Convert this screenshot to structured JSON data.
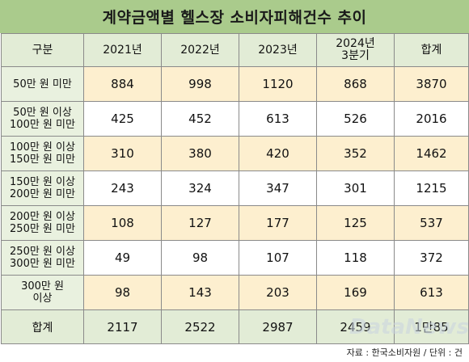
{
  "title": "계약금액별 헬스장 소비자피해건수 추이",
  "source": "자료 : 한국소비자원 / 단위 : 건",
  "watermark": "DataNews",
  "colors": {
    "title_bg": "#aacb8c",
    "header_bg": "#e2ecd6",
    "row_highlight": "#fdefcf",
    "border": "#8a8a8a"
  },
  "chart_data": {
    "type": "table",
    "title": "계약금액별 헬스장 소비자피해건수 추이",
    "unit": "건",
    "columns": [
      "구분",
      "2021년",
      "2022년",
      "2023년",
      "2024년\n3분기",
      "합계"
    ],
    "rows": [
      {
        "label": "50만 원 미만",
        "values": [
          "884",
          "998",
          "1120",
          "868",
          "3870"
        ]
      },
      {
        "label": "50만 원 이상\n100만 원 미만",
        "values": [
          "425",
          "452",
          "613",
          "526",
          "2016"
        ]
      },
      {
        "label": "100만 원 이상\n150만 원 미만",
        "values": [
          "310",
          "380",
          "420",
          "352",
          "1462"
        ]
      },
      {
        "label": "150만 원 이상\n200만 원 미만",
        "values": [
          "243",
          "324",
          "347",
          "301",
          "1215"
        ]
      },
      {
        "label": "200만 원 이상\n250만 원 미만",
        "values": [
          "108",
          "127",
          "177",
          "125",
          "537"
        ]
      },
      {
        "label": "250만 원 이상\n300만 원 미만",
        "values": [
          "49",
          "98",
          "107",
          "118",
          "372"
        ]
      },
      {
        "label": "300만 원\n이상",
        "values": [
          "98",
          "143",
          "203",
          "169",
          "613"
        ]
      }
    ],
    "total": {
      "label": "합계",
      "values": [
        "2117",
        "2522",
        "2987",
        "2459",
        "1만85"
      ]
    }
  }
}
